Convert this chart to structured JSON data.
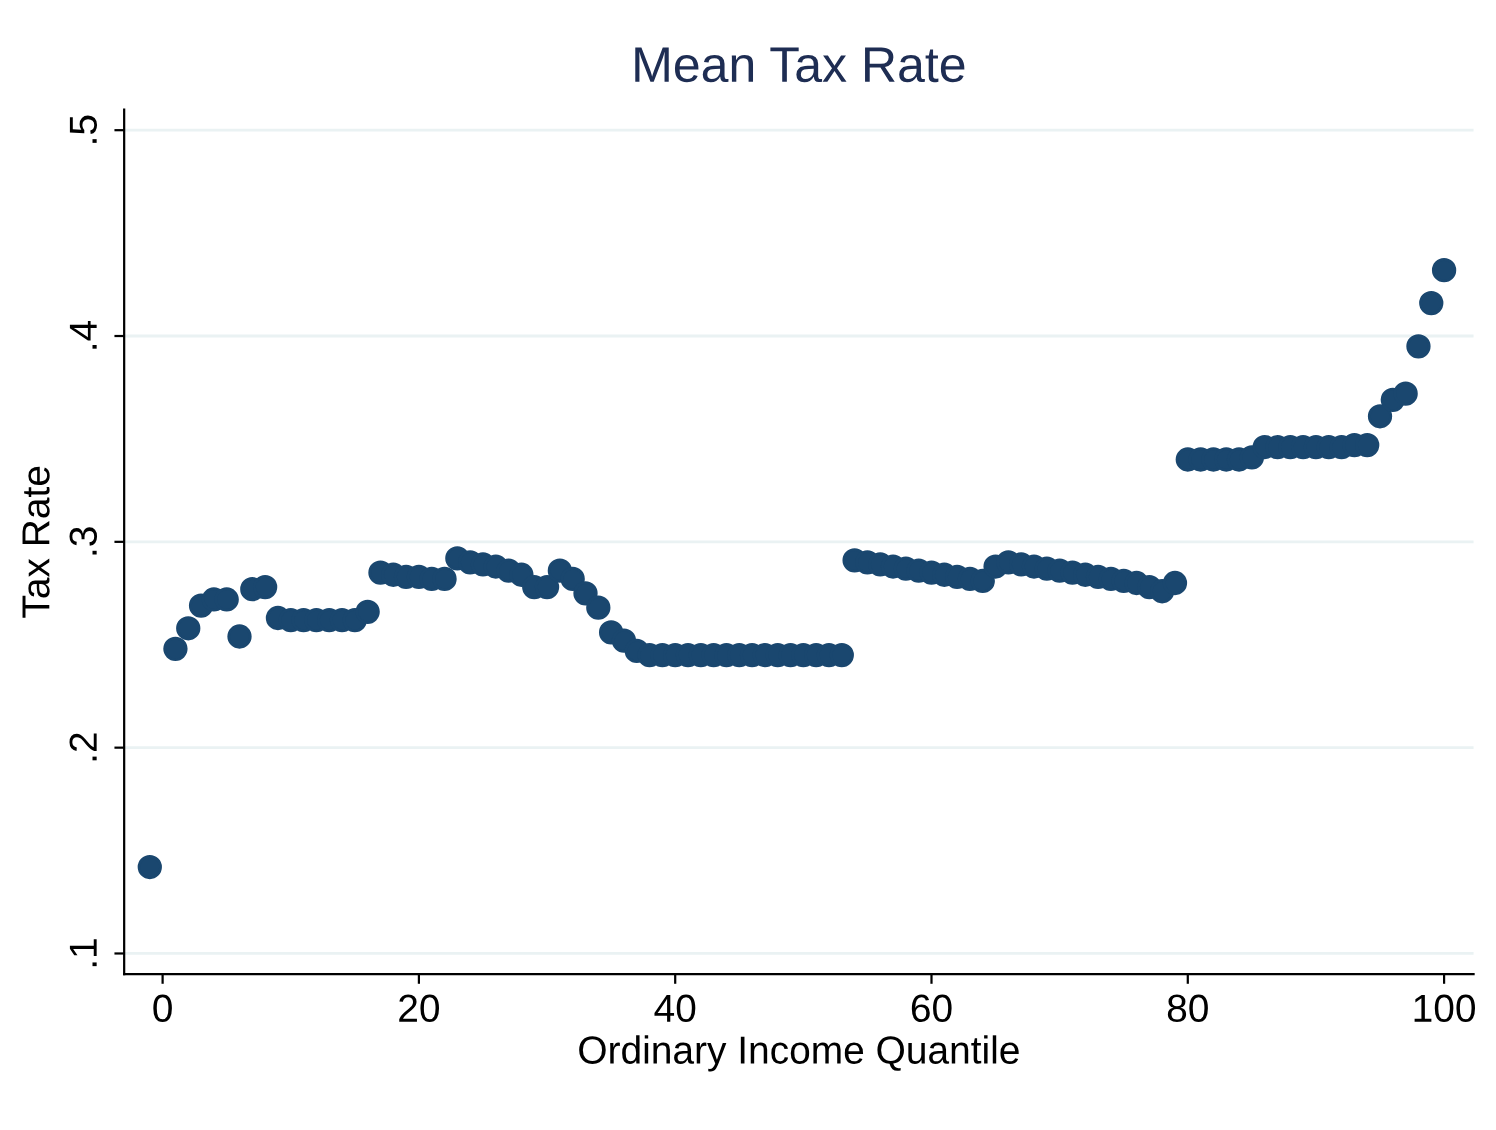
{
  "chart_data": {
    "type": "scatter",
    "title": "Mean Tax Rate",
    "xlabel": "Ordinary Income Quantile",
    "ylabel": "Tax Rate",
    "x": [
      -1,
      1,
      2,
      3,
      4,
      5,
      6,
      7,
      8,
      9,
      10,
      11,
      12,
      13,
      14,
      15,
      16,
      17,
      18,
      19,
      20,
      21,
      22,
      23,
      24,
      25,
      26,
      27,
      28,
      29,
      30,
      31,
      32,
      33,
      34,
      35,
      36,
      37,
      38,
      39,
      40,
      41,
      42,
      43,
      44,
      45,
      46,
      47,
      48,
      49,
      50,
      51,
      52,
      53,
      54,
      55,
      56,
      57,
      58,
      59,
      60,
      61,
      62,
      63,
      64,
      65,
      66,
      67,
      68,
      69,
      70,
      71,
      72,
      73,
      74,
      75,
      76,
      77,
      78,
      79,
      80,
      81,
      82,
      83,
      84,
      85,
      86,
      87,
      88,
      89,
      90,
      91,
      92,
      93,
      94,
      95,
      96,
      97,
      98,
      99,
      100
    ],
    "series": [
      {
        "color": "#1a476f",
        "values": [
          0.142,
          0.248,
          0.258,
          0.269,
          0.272,
          0.272,
          0.254,
          0.277,
          0.278,
          0.263,
          0.262,
          0.262,
          0.262,
          0.262,
          0.262,
          0.262,
          0.266,
          0.285,
          0.284,
          0.283,
          0.283,
          0.282,
          0.282,
          0.292,
          0.29,
          0.289,
          0.288,
          0.286,
          0.284,
          0.278,
          0.278,
          0.286,
          0.282,
          0.275,
          0.268,
          0.256,
          0.252,
          0.247,
          0.245,
          0.245,
          0.245,
          0.245,
          0.245,
          0.245,
          0.245,
          0.245,
          0.245,
          0.245,
          0.245,
          0.245,
          0.245,
          0.245,
          0.245,
          0.245,
          0.291,
          0.29,
          0.289,
          0.288,
          0.287,
          0.286,
          0.285,
          0.284,
          0.283,
          0.282,
          0.281,
          0.288,
          0.29,
          0.289,
          0.288,
          0.287,
          0.286,
          0.285,
          0.284,
          0.283,
          0.282,
          0.281,
          0.28,
          0.278,
          0.276,
          0.28,
          0.34,
          0.34,
          0.34,
          0.34,
          0.34,
          0.341,
          0.346,
          0.346,
          0.346,
          0.346,
          0.346,
          0.346,
          0.346,
          0.347,
          0.347,
          0.361,
          0.369,
          0.372,
          0.395,
          0.416,
          0.432
        ]
      }
    ],
    "xlim": [
      -3,
      102.3
    ],
    "ylim": [
      0.09,
      0.51
    ],
    "xticks": [
      0,
      20,
      40,
      60,
      80,
      100
    ],
    "yticks": [
      {
        "value": 0.1,
        "label": ".1"
      },
      {
        "value": 0.2,
        "label": ".2"
      },
      {
        "value": 0.3,
        "label": ".3"
      },
      {
        "value": 0.4,
        "label": ".4"
      },
      {
        "value": 0.5,
        "label": ".5"
      }
    ],
    "grid": "y",
    "marker": "circle",
    "legend": false
  }
}
